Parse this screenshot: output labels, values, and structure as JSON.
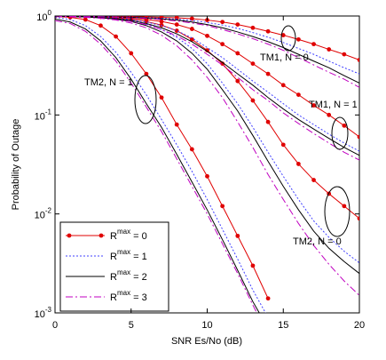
{
  "chart_data": {
    "type": "line",
    "xlabel": "SNR Es/No (dB)",
    "ylabel": "Probability of Outage",
    "x": [
      0,
      1,
      2,
      3,
      4,
      5,
      6,
      7,
      8,
      9,
      10,
      11,
      12,
      13,
      14,
      15,
      16,
      17,
      18,
      19,
      20
    ],
    "xlim": [
      0,
      20
    ],
    "xticks": [
      0,
      5,
      10,
      15,
      20
    ],
    "ylim": [
      0.001,
      1
    ],
    "ylog": true,
    "yticks": [
      {
        "value": 0.001,
        "label": "10^-3"
      },
      {
        "value": 0.01,
        "label": "10^-2"
      },
      {
        "value": 0.1,
        "label": "10^-1"
      },
      {
        "value": 1,
        "label": "10^0"
      }
    ],
    "legend": "lower left",
    "annotations": [
      "TM1, N = 0",
      "TM1, N = 1",
      "TM2, N = 1",
      "TM2, N = 0"
    ],
    "series": [
      {
        "name": "R^max = 0",
        "color": "#e00000",
        "style": "solid",
        "markers": true,
        "values": [
          [
            1,
            1,
            1,
            0.995,
            0.99,
            0.985,
            0.98,
            0.97,
            0.96,
            0.94,
            0.91,
            0.87,
            0.82,
            0.76,
            0.7,
            0.64,
            0.58,
            0.52,
            0.46,
            0.41,
            0.36
          ],
          [
            1,
            1,
            0.99,
            0.98,
            0.97,
            0.95,
            0.92,
            0.88,
            0.82,
            0.74,
            0.63,
            0.52,
            0.42,
            0.33,
            0.26,
            0.2,
            0.16,
            0.125,
            0.1,
            0.078,
            0.06
          ],
          [
            0.99,
            0.97,
            0.92,
            0.8,
            0.62,
            0.42,
            0.26,
            0.15,
            0.08,
            0.045,
            0.024,
            0.012,
            0.006,
            0.003,
            0.0014,
            null,
            null,
            null,
            null,
            null,
            null
          ],
          [
            1,
            1,
            0.99,
            0.98,
            0.96,
            0.93,
            0.88,
            0.81,
            0.71,
            0.58,
            0.45,
            0.33,
            0.22,
            0.14,
            0.085,
            0.05,
            0.032,
            0.022,
            0.016,
            0.012,
            0.009
          ]
        ]
      },
      {
        "name": "R^max = 1",
        "color": "#4040ff",
        "style": "dotted",
        "markers": false,
        "values": [
          [
            1,
            1,
            1,
            0.99,
            0.985,
            0.975,
            0.965,
            0.95,
            0.93,
            0.9,
            0.86,
            0.81,
            0.75,
            0.68,
            0.61,
            0.54,
            0.47,
            0.41,
            0.35,
            0.3,
            0.26
          ],
          [
            1,
            0.99,
            0.98,
            0.97,
            0.95,
            0.92,
            0.87,
            0.8,
            0.71,
            0.6,
            0.48,
            0.38,
            0.29,
            0.22,
            0.17,
            0.13,
            0.1,
            0.08,
            0.064,
            0.052,
            0.043
          ],
          [
            0.97,
            0.92,
            0.8,
            0.62,
            0.43,
            0.27,
            0.16,
            0.09,
            0.05,
            0.027,
            0.014,
            0.007,
            0.0035,
            0.0017,
            0.0009,
            null,
            null,
            null,
            null,
            null,
            null
          ],
          [
            1,
            0.99,
            0.98,
            0.97,
            0.94,
            0.9,
            0.83,
            0.73,
            0.61,
            0.47,
            0.33,
            0.21,
            0.13,
            0.075,
            0.042,
            0.024,
            0.014,
            0.0085,
            0.0058,
            0.0042,
            0.0032
          ]
        ]
      },
      {
        "name": "R^max = 2",
        "color": "#000000",
        "style": "solid",
        "markers": false,
        "values": [
          [
            1,
            1,
            0.995,
            0.99,
            0.98,
            0.97,
            0.955,
            0.935,
            0.91,
            0.87,
            0.82,
            0.76,
            0.69,
            0.62,
            0.55,
            0.48,
            0.41,
            0.35,
            0.3,
            0.25,
            0.21
          ],
          [
            1,
            0.99,
            0.98,
            0.96,
            0.94,
            0.9,
            0.84,
            0.76,
            0.66,
            0.55,
            0.44,
            0.34,
            0.26,
            0.2,
            0.15,
            0.115,
            0.09,
            0.072,
            0.058,
            0.047,
            0.039
          ],
          [
            0.93,
            0.87,
            0.74,
            0.56,
            0.38,
            0.23,
            0.13,
            0.075,
            0.04,
            0.021,
            0.011,
            0.0055,
            0.0027,
            0.0013,
            0.0007,
            null,
            null,
            null,
            null,
            null,
            null
          ],
          [
            1,
            0.99,
            0.98,
            0.96,
            0.93,
            0.88,
            0.8,
            0.69,
            0.56,
            0.42,
            0.29,
            0.18,
            0.11,
            0.062,
            0.034,
            0.019,
            0.011,
            0.0067,
            0.0045,
            0.0033,
            0.0025
          ]
        ]
      },
      {
        "name": "R^max = 3",
        "color": "#c000c0",
        "style": "dashdot",
        "markers": false,
        "values": [
          [
            1,
            1,
            0.995,
            0.985,
            0.975,
            0.96,
            0.945,
            0.92,
            0.89,
            0.85,
            0.8,
            0.73,
            0.66,
            0.59,
            0.52,
            0.45,
            0.38,
            0.32,
            0.27,
            0.23,
            0.19
          ],
          [
            0.99,
            0.98,
            0.97,
            0.95,
            0.92,
            0.88,
            0.82,
            0.73,
            0.63,
            0.52,
            0.41,
            0.32,
            0.24,
            0.18,
            0.14,
            0.105,
            0.082,
            0.065,
            0.052,
            0.042,
            0.035
          ],
          [
            0.9,
            0.84,
            0.7,
            0.52,
            0.35,
            0.21,
            0.12,
            0.068,
            0.036,
            0.019,
            0.01,
            0.005,
            0.0025,
            0.0012,
            0.0006,
            null,
            null,
            null,
            null,
            null,
            null
          ],
          [
            0.99,
            0.98,
            0.97,
            0.95,
            0.91,
            0.85,
            0.76,
            0.64,
            0.5,
            0.36,
            0.24,
            0.15,
            0.085,
            0.047,
            0.025,
            0.014,
            0.008,
            0.0048,
            0.0031,
            0.0021,
            0.0015
          ]
        ]
      }
    ]
  }
}
